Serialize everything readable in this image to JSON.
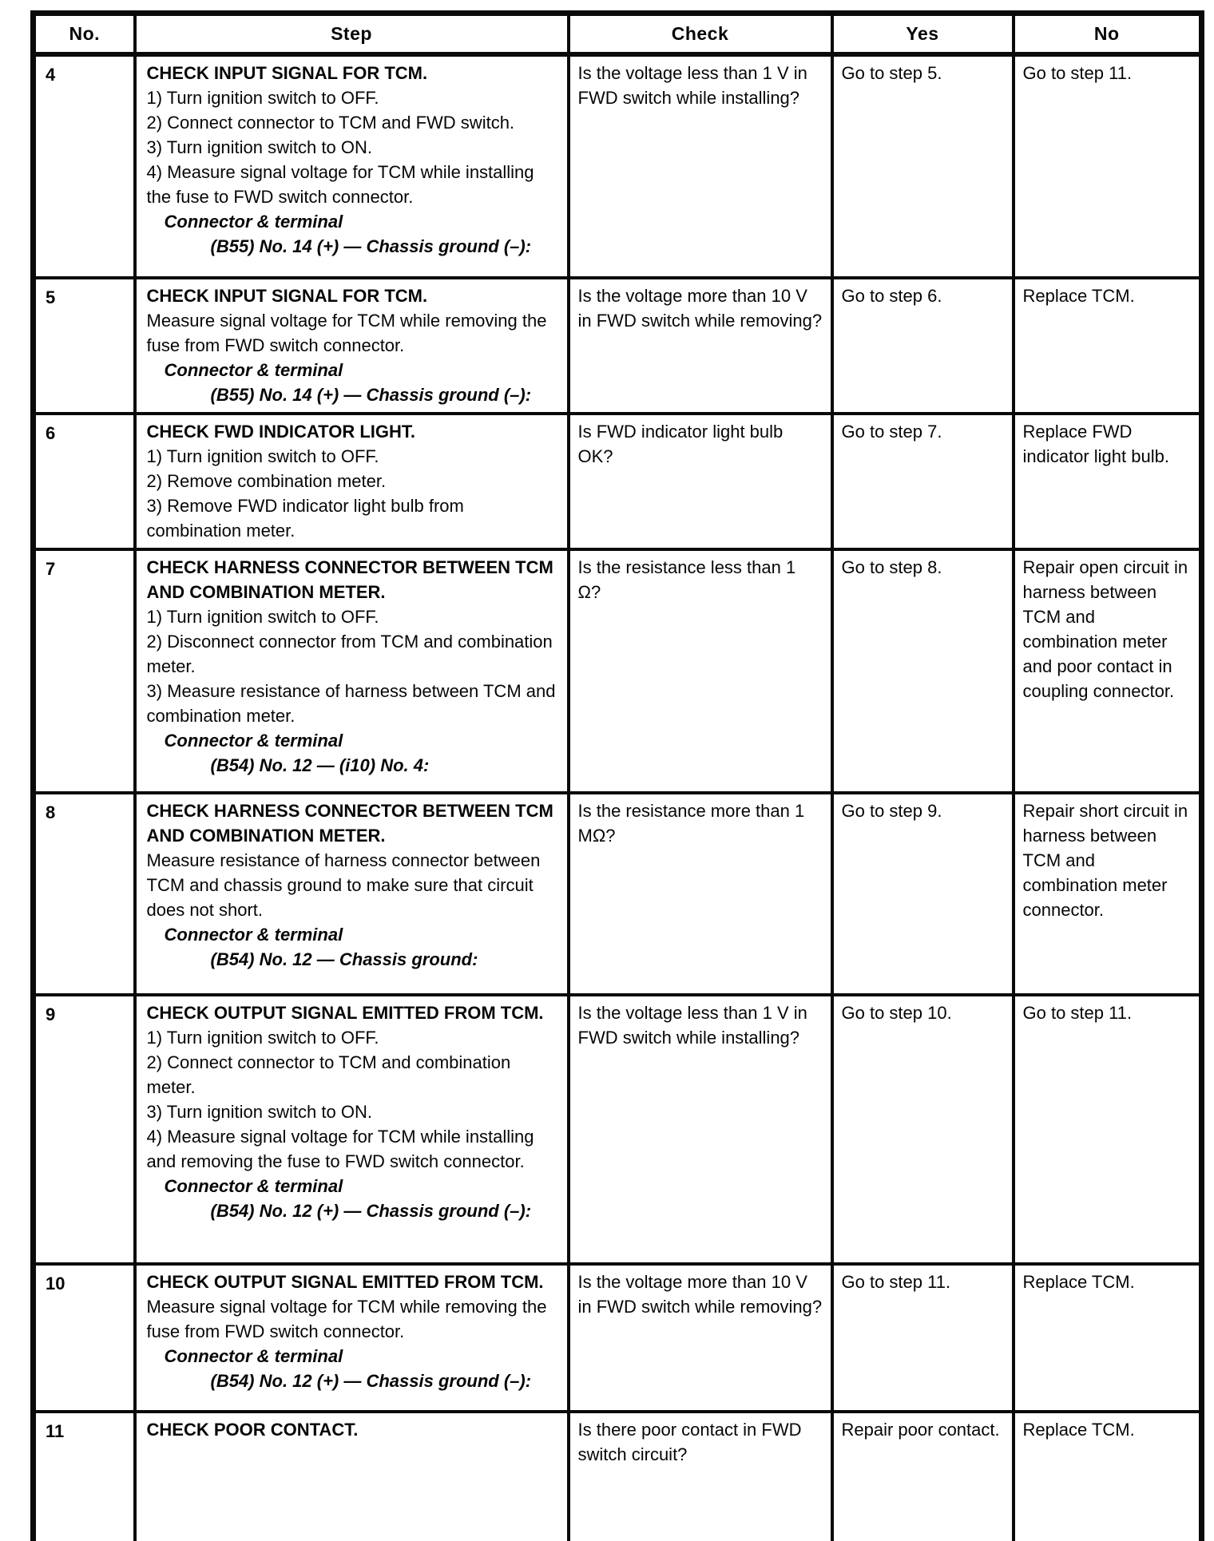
{
  "table": {
    "headers": [
      "No.",
      "Step",
      "Check",
      "Yes",
      "No"
    ],
    "rows": [
      {
        "num": "4",
        "step_title": "CHECK INPUT SIGNAL FOR TCM.",
        "step_body": [
          "1) Turn ignition switch to OFF.",
          "2) Connect connector to TCM and FWD switch.",
          "3) Turn ignition switch to ON.",
          "4) Measure signal voltage for TCM while installing the fuse to FWD switch connector."
        ],
        "connector_label": "Connector & terminal",
        "connector_spec": "(B55) No. 14 (+) — Chassis ground (–):",
        "check": "Is the voltage less than 1 V in FWD switch while installing?",
        "yes": "Go to step 5.",
        "no": "Go to step 11."
      },
      {
        "num": "5",
        "step_title": "CHECK INPUT SIGNAL FOR TCM.",
        "step_body": [
          "Measure signal voltage for TCM while removing the fuse from FWD switch connector."
        ],
        "connector_label": "Connector & terminal",
        "connector_spec": "(B55) No. 14 (+) — Chassis ground (–):",
        "check": "Is the voltage more than 10 V in FWD switch while removing?",
        "yes": "Go to step 6.",
        "no": "Replace TCM."
      },
      {
        "num": "6",
        "step_title": "CHECK FWD INDICATOR LIGHT.",
        "step_body": [
          "1) Turn ignition switch to OFF.",
          "2) Remove combination meter.",
          "3) Remove FWD indicator light bulb from combination meter."
        ],
        "check": "Is FWD indicator light bulb OK?",
        "yes": "Go to step 7.",
        "no": "Replace FWD indicator light bulb."
      },
      {
        "num": "7",
        "step_title": "CHECK HARNESS CONNECTOR BETWEEN TCM AND COMBINATION METER.",
        "step_body": [
          "1) Turn ignition switch to OFF.",
          "2) Disconnect connector from TCM and combination meter.",
          "3) Measure resistance of harness between TCM and combination meter."
        ],
        "connector_label": "Connector & terminal",
        "connector_spec": "(B54) No. 12 — (i10) No. 4:",
        "check": "Is the resistance less than 1 Ω?",
        "yes": "Go to step 8.",
        "no": "Repair open circuit in harness between TCM and combination meter and poor contact in coupling connector."
      },
      {
        "num": "8",
        "step_title": "CHECK HARNESS CONNECTOR BETWEEN TCM AND COMBINATION METER.",
        "step_body": [
          "Measure resistance of harness connector between TCM and chassis ground to make sure that circuit does not short."
        ],
        "connector_label": "Connector & terminal",
        "connector_spec": "(B54) No. 12 — Chassis ground:",
        "check": "Is the resistance more than 1 MΩ?",
        "yes": "Go to step 9.",
        "no": "Repair short circuit in harness between TCM and combination meter connector."
      },
      {
        "num": "9",
        "step_title": "CHECK OUTPUT SIGNAL EMITTED FROM TCM.",
        "step_body": [
          "1) Turn ignition switch to OFF.",
          "2) Connect connector to TCM and combination meter.",
          "3) Turn ignition switch to ON.",
          "4) Measure signal voltage for TCM while installing and removing the fuse to FWD switch connector."
        ],
        "connector_label": "Connector & terminal",
        "connector_spec": "(B54) No. 12 (+) — Chassis ground (–):",
        "check": "Is the voltage less than 1 V in FWD switch while installing?",
        "yes": "Go to step 10.",
        "no": "Go to step 11."
      },
      {
        "num": "10",
        "step_title": "CHECK OUTPUT SIGNAL EMITTED FROM TCM.",
        "step_body": [
          "Measure signal voltage for TCM while removing the fuse from FWD switch connector."
        ],
        "connector_label": "Connector & terminal",
        "connector_spec": "(B54) No. 12 (+) — Chassis ground (–):",
        "check": "Is the voltage more than 10 V in FWD switch while removing?",
        "yes": "Go to step 11.",
        "no": "Replace TCM."
      },
      {
        "num": "11",
        "step_title": "CHECK POOR CONTACT.",
        "step_body": [],
        "check": "Is there poor contact in FWD switch circuit?",
        "yes": "Repair poor contact.",
        "no": "Replace TCM."
      }
    ]
  }
}
